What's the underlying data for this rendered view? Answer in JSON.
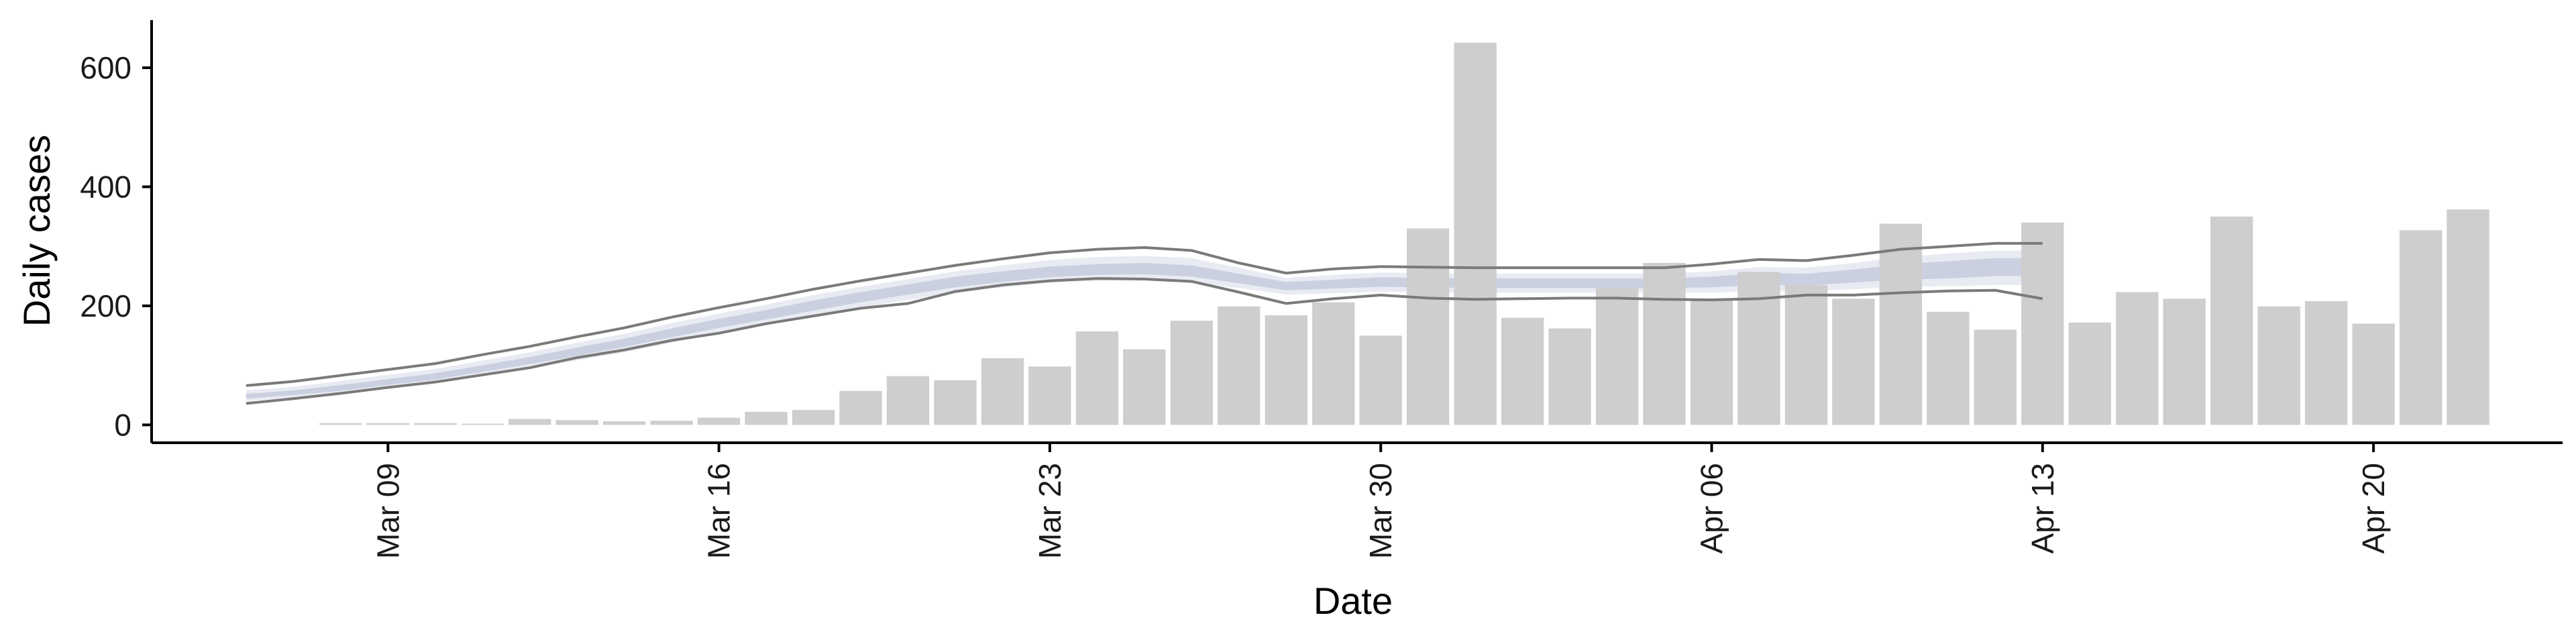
{
  "chart_data": {
    "type": "bar",
    "xlabel": "Date",
    "ylabel": "Daily cases",
    "ylim": [
      -30,
      680
    ],
    "xlim": [
      "2020-03-04",
      "2020-04-24"
    ],
    "x_ticks": [
      {
        "date": "2020-03-09",
        "label": "Mar 09"
      },
      {
        "date": "2020-03-16",
        "label": "Mar 16"
      },
      {
        "date": "2020-03-23",
        "label": "Mar 23"
      },
      {
        "date": "2020-03-30",
        "label": "Mar 30"
      },
      {
        "date": "2020-04-06",
        "label": "Apr 06"
      },
      {
        "date": "2020-04-13",
        "label": "Apr 13"
      },
      {
        "date": "2020-04-20",
        "label": "Apr 20"
      }
    ],
    "y_ticks": [
      0,
      200,
      400,
      600
    ],
    "grid": false,
    "legend": "none",
    "colors": {
      "bars": "#cccccc",
      "band_outer": "#e4e7f0",
      "band_inner": "#c5cbdd",
      "bound_line": "#7a7a7a",
      "axis": "#000000"
    },
    "bars": {
      "dates": [
        "2020-03-08",
        "2020-03-09",
        "2020-03-10",
        "2020-03-11",
        "2020-03-12",
        "2020-03-13",
        "2020-03-14",
        "2020-03-15",
        "2020-03-16",
        "2020-03-17",
        "2020-03-18",
        "2020-03-19",
        "2020-03-20",
        "2020-03-21",
        "2020-03-22",
        "2020-03-23",
        "2020-03-24",
        "2020-03-25",
        "2020-03-26",
        "2020-03-27",
        "2020-03-28",
        "2020-03-29",
        "2020-03-30",
        "2020-03-31",
        "2020-04-01",
        "2020-04-02",
        "2020-04-03",
        "2020-04-04",
        "2020-04-05",
        "2020-04-06",
        "2020-04-07",
        "2020-04-08",
        "2020-04-09",
        "2020-04-10",
        "2020-04-11",
        "2020-04-12",
        "2020-04-13",
        "2020-04-14",
        "2020-04-15",
        "2020-04-16",
        "2020-04-17",
        "2020-04-18",
        "2020-04-19",
        "2020-04-20",
        "2020-04-21",
        "2020-04-22",
        "2020-04-23"
      ],
      "values": [
        3,
        3,
        3,
        2,
        10,
        8,
        6,
        7,
        12,
        22,
        25,
        57,
        82,
        75,
        112,
        98,
        157,
        127,
        175,
        199,
        184,
        206,
        150,
        330,
        642,
        180,
        162,
        231,
        272,
        212,
        257,
        235,
        212,
        338,
        190,
        160,
        340,
        172,
        223,
        212,
        350,
        199,
        208,
        170,
        327,
        362,
        0
      ]
    },
    "estimate": {
      "dates": [
        "2020-03-06",
        "2020-03-07",
        "2020-03-08",
        "2020-03-09",
        "2020-03-10",
        "2020-03-11",
        "2020-03-12",
        "2020-03-13",
        "2020-03-14",
        "2020-03-15",
        "2020-03-16",
        "2020-03-17",
        "2020-03-18",
        "2020-03-19",
        "2020-03-20",
        "2020-03-21",
        "2020-03-22",
        "2020-03-23",
        "2020-03-24",
        "2020-03-25",
        "2020-03-26",
        "2020-03-27",
        "2020-03-28",
        "2020-03-29",
        "2020-03-30",
        "2020-03-31",
        "2020-04-01",
        "2020-04-02",
        "2020-04-03",
        "2020-04-04",
        "2020-04-05",
        "2020-04-06",
        "2020-04-07",
        "2020-04-08",
        "2020-04-09",
        "2020-04-10",
        "2020-04-11",
        "2020-04-12",
        "2020-04-13"
      ],
      "upper": [
        66,
        73,
        83,
        93,
        103,
        118,
        132,
        148,
        163,
        181,
        197,
        212,
        228,
        242,
        255,
        268,
        279,
        289,
        295,
        298,
        293,
        272,
        255,
        262,
        266,
        265,
        264,
        264,
        264,
        264,
        264,
        270,
        278,
        276,
        285,
        295,
        300,
        305,
        305
      ],
      "outer_upper": [
        58,
        64,
        74,
        84,
        94,
        108,
        122,
        138,
        153,
        171,
        187,
        202,
        218,
        232,
        245,
        258,
        268,
        277,
        282,
        284,
        280,
        264,
        247,
        252,
        256,
        255,
        254,
        254,
        254,
        254,
        254,
        258,
        265,
        264,
        272,
        282,
        288,
        293,
        293
      ],
      "inner_upper": [
        52,
        58,
        67,
        77,
        87,
        100,
        114,
        130,
        145,
        162,
        178,
        193,
        209,
        223,
        236,
        249,
        258,
        266,
        270,
        272,
        268,
        254,
        240,
        244,
        248,
        247,
        246,
        246,
        246,
        246,
        246,
        249,
        255,
        254,
        261,
        270,
        275,
        280,
        280
      ],
      "median": [
        48,
        54,
        62,
        72,
        82,
        95,
        108,
        123,
        138,
        155,
        171,
        185,
        200,
        214,
        227,
        240,
        249,
        257,
        261,
        263,
        259,
        246,
        233,
        236,
        240,
        239,
        238,
        238,
        238,
        238,
        238,
        240,
        245,
        244,
        250,
        257,
        261,
        265,
        265
      ],
      "inner_lower": [
        44,
        50,
        57,
        67,
        76,
        89,
        102,
        116,
        131,
        147,
        163,
        177,
        192,
        206,
        219,
        231,
        240,
        248,
        252,
        253,
        249,
        238,
        226,
        229,
        232,
        231,
        230,
        230,
        230,
        230,
        230,
        231,
        235,
        234,
        239,
        244,
        246,
        250,
        250
      ],
      "outer_lower": [
        40,
        46,
        52,
        61,
        70,
        82,
        95,
        108,
        122,
        138,
        154,
        168,
        183,
        197,
        210,
        222,
        231,
        239,
        242,
        243,
        239,
        230,
        219,
        221,
        224,
        223,
        222,
        222,
        222,
        222,
        222,
        222,
        225,
        224,
        228,
        232,
        233,
        235,
        235
      ],
      "lower": [
        36,
        44,
        53,
        63,
        72,
        84,
        96,
        113,
        126,
        142,
        154,
        170,
        183,
        196,
        204,
        224,
        235,
        242,
        246,
        245,
        241,
        223,
        204,
        212,
        218,
        213,
        211,
        212,
        213,
        213,
        211,
        210,
        212,
        218,
        218,
        222,
        225,
        226,
        212
      ]
    }
  }
}
